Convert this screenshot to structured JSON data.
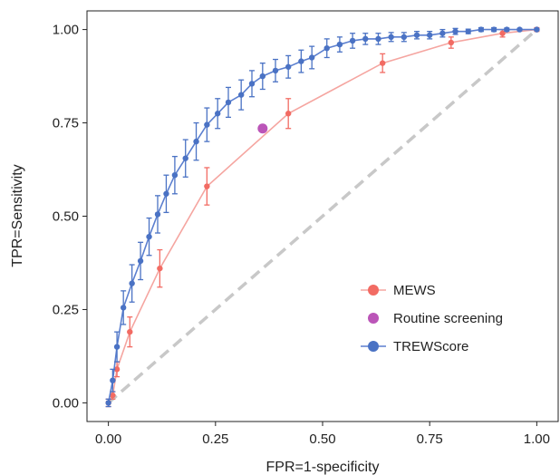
{
  "chart_data": {
    "type": "line",
    "xlabel": "FPR=1-specificity",
    "ylabel": "TPR=Sensitivity",
    "xlim": [
      -0.05,
      1.05
    ],
    "ylim": [
      -0.05,
      1.05
    ],
    "xticks": [
      "0.00",
      "0.25",
      "0.50",
      "0.75",
      "1.00"
    ],
    "yticks": [
      "0.00",
      "0.25",
      "0.50",
      "0.75",
      "1.00"
    ],
    "grid": false,
    "legend_position": "bottom-right",
    "reference_line": {
      "x": [
        0,
        1
      ],
      "y": [
        0,
        1
      ],
      "color": "#c8c8c8",
      "dashed": true
    },
    "series": [
      {
        "name": "MEWS",
        "color": "#f26b63",
        "line_color": "#f5a5a0",
        "points": [
          {
            "x": 0.0,
            "y": 0.0,
            "err": 0.01
          },
          {
            "x": 0.01,
            "y": 0.02,
            "err": 0.01
          },
          {
            "x": 0.02,
            "y": 0.09,
            "err": 0.02
          },
          {
            "x": 0.05,
            "y": 0.19,
            "err": 0.04
          },
          {
            "x": 0.12,
            "y": 0.36,
            "err": 0.05
          },
          {
            "x": 0.23,
            "y": 0.58,
            "err": 0.05
          },
          {
            "x": 0.42,
            "y": 0.775,
            "err": 0.04
          },
          {
            "x": 0.64,
            "y": 0.91,
            "err": 0.025
          },
          {
            "x": 0.8,
            "y": 0.965,
            "err": 0.015
          },
          {
            "x": 0.92,
            "y": 0.99,
            "err": 0.01
          },
          {
            "x": 1.0,
            "y": 1.0,
            "err": 0.005
          }
        ]
      },
      {
        "name": "Routine screening",
        "color": "#bb55b8",
        "points": [
          {
            "x": 0.36,
            "y": 0.735
          }
        ]
      },
      {
        "name": "TREWScore",
        "color": "#4a72c4",
        "line_color": "#5b7fcf",
        "points": [
          {
            "x": 0.0,
            "y": 0.0,
            "err": 0.01
          },
          {
            "x": 0.01,
            "y": 0.06,
            "err": 0.03
          },
          {
            "x": 0.02,
            "y": 0.15,
            "err": 0.04
          },
          {
            "x": 0.035,
            "y": 0.255,
            "err": 0.045
          },
          {
            "x": 0.055,
            "y": 0.32,
            "err": 0.05
          },
          {
            "x": 0.075,
            "y": 0.38,
            "err": 0.05
          },
          {
            "x": 0.095,
            "y": 0.445,
            "err": 0.05
          },
          {
            "x": 0.115,
            "y": 0.505,
            "err": 0.05
          },
          {
            "x": 0.135,
            "y": 0.56,
            "err": 0.05
          },
          {
            "x": 0.155,
            "y": 0.61,
            "err": 0.05
          },
          {
            "x": 0.18,
            "y": 0.655,
            "err": 0.05
          },
          {
            "x": 0.205,
            "y": 0.7,
            "err": 0.05
          },
          {
            "x": 0.23,
            "y": 0.745,
            "err": 0.045
          },
          {
            "x": 0.255,
            "y": 0.775,
            "err": 0.04
          },
          {
            "x": 0.28,
            "y": 0.805,
            "err": 0.04
          },
          {
            "x": 0.31,
            "y": 0.825,
            "err": 0.04
          },
          {
            "x": 0.335,
            "y": 0.855,
            "err": 0.035
          },
          {
            "x": 0.36,
            "y": 0.875,
            "err": 0.035
          },
          {
            "x": 0.39,
            "y": 0.89,
            "err": 0.03
          },
          {
            "x": 0.42,
            "y": 0.9,
            "err": 0.03
          },
          {
            "x": 0.45,
            "y": 0.915,
            "err": 0.03
          },
          {
            "x": 0.475,
            "y": 0.925,
            "err": 0.03
          },
          {
            "x": 0.51,
            "y": 0.95,
            "err": 0.025
          },
          {
            "x": 0.54,
            "y": 0.96,
            "err": 0.02
          },
          {
            "x": 0.57,
            "y": 0.97,
            "err": 0.02
          },
          {
            "x": 0.6,
            "y": 0.975,
            "err": 0.015
          },
          {
            "x": 0.63,
            "y": 0.975,
            "err": 0.015
          },
          {
            "x": 0.66,
            "y": 0.98,
            "err": 0.012
          },
          {
            "x": 0.69,
            "y": 0.98,
            "err": 0.012
          },
          {
            "x": 0.72,
            "y": 0.985,
            "err": 0.01
          },
          {
            "x": 0.75,
            "y": 0.985,
            "err": 0.01
          },
          {
            "x": 0.78,
            "y": 0.99,
            "err": 0.01
          },
          {
            "x": 0.81,
            "y": 0.995,
            "err": 0.008
          },
          {
            "x": 0.84,
            "y": 0.995,
            "err": 0.006
          },
          {
            "x": 0.87,
            "y": 1.0,
            "err": 0.005
          },
          {
            "x": 0.9,
            "y": 1.0,
            "err": 0.005
          },
          {
            "x": 0.93,
            "y": 1.0,
            "err": 0.004
          },
          {
            "x": 0.96,
            "y": 1.0,
            "err": 0.003
          },
          {
            "x": 1.0,
            "y": 1.0,
            "err": 0.002
          }
        ]
      }
    ]
  }
}
